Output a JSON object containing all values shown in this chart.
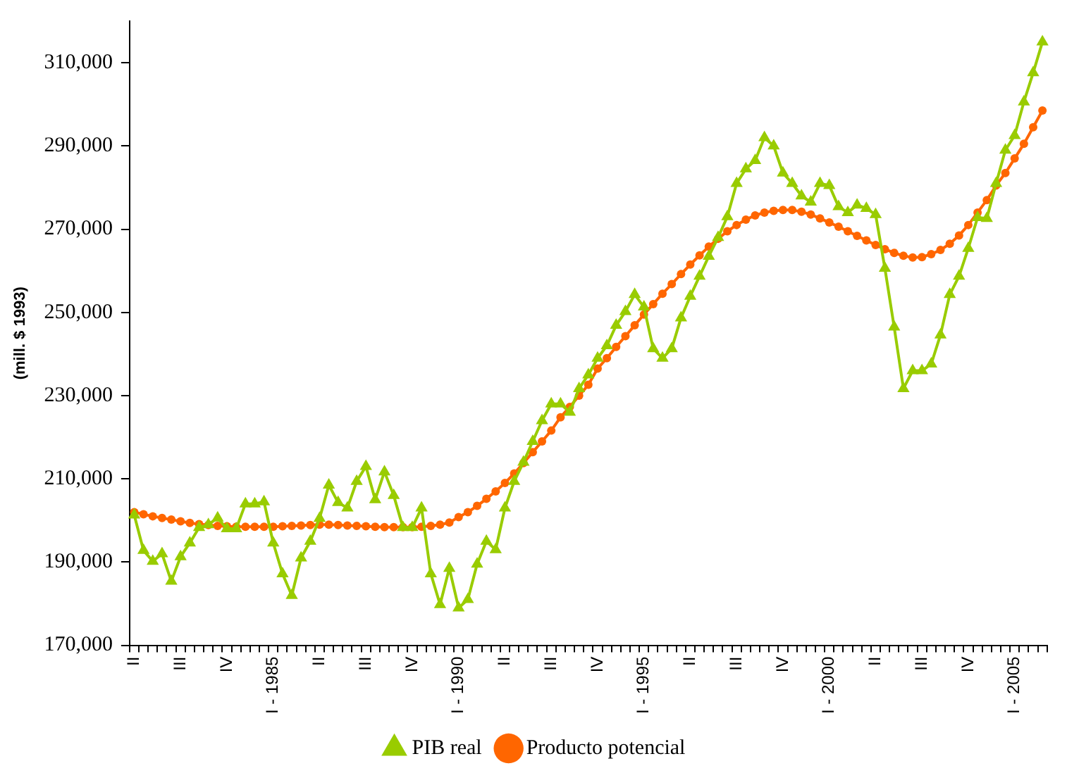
{
  "chart_data": {
    "type": "line",
    "ylabel": "(mill. $ 1993)",
    "legend": "bottom",
    "grid": false,
    "categories": [
      "II",
      null,
      null,
      null,
      null,
      "III",
      null,
      null,
      null,
      null,
      "IV",
      null,
      null,
      null,
      null,
      "I - 1985",
      null,
      null,
      null,
      null,
      "II",
      null,
      null,
      null,
      null,
      "III",
      null,
      null,
      null,
      null,
      "IV",
      null,
      null,
      null,
      null,
      "I - 1990",
      null,
      null,
      null,
      null,
      "II",
      null,
      null,
      null,
      null,
      "III",
      null,
      null,
      null,
      null,
      "IV",
      null,
      null,
      null,
      null,
      "I - 1995",
      null,
      null,
      null,
      null,
      "II",
      null,
      null,
      null,
      null,
      "III",
      null,
      null,
      null,
      null,
      "IV",
      null,
      null,
      null,
      null,
      "I - 2000",
      null,
      null,
      null,
      null,
      "II",
      null,
      null,
      null,
      null,
      "III",
      null,
      null,
      null,
      null,
      "IV",
      null,
      null,
      null,
      null,
      "I - 2005",
      null,
      null,
      null
    ],
    "ylim": [
      170000,
      320000
    ],
    "yticks": [
      {
        "value": 170000,
        "label": "170,000"
      },
      {
        "value": 190000,
        "label": "190,000"
      },
      {
        "value": 210000,
        "label": "210,000"
      },
      {
        "value": 230000,
        "label": "230,000"
      },
      {
        "value": 250000,
        "label": "250,000"
      },
      {
        "value": 270000,
        "label": "270,000"
      },
      {
        "value": 290000,
        "label": "290,000"
      },
      {
        "value": 310000,
        "label": "310,000"
      }
    ],
    "series": [
      {
        "name": "PIB real",
        "color": "#99cc00",
        "marker": "triangle",
        "values": [
          201300,
          192800,
          190200,
          192000,
          185400,
          191300,
          194600,
          198300,
          199000,
          200600,
          198000,
          198000,
          204000,
          204000,
          204500,
          194600,
          187200,
          182000,
          191000,
          195000,
          200500,
          208500,
          204300,
          203000,
          209400,
          213000,
          205000,
          211700,
          206000,
          198300,
          198300,
          203000,
          187200,
          179800,
          188500,
          179000,
          181000,
          189500,
          195000,
          193000,
          203000,
          209400,
          214000,
          219000,
          224000,
          228000,
          228000,
          226000,
          231700,
          235000,
          239000,
          242000,
          246900,
          250200,
          254300,
          251300,
          241300,
          239000,
          241300,
          248700,
          253900,
          258700,
          263500,
          268000,
          273000,
          281000,
          284500,
          286500,
          292000,
          290000,
          283500,
          281000,
          278000,
          276500,
          281000,
          280500,
          275400,
          274000,
          275800,
          275000,
          273500,
          260600,
          246500,
          231700,
          236000,
          236000,
          237600,
          244600,
          254300,
          258700,
          265400,
          272800,
          272600,
          281000,
          289000,
          292500,
          300600,
          307600,
          315000
        ]
      },
      {
        "name": "Producto potencial",
        "color": "#ff6600",
        "marker": "circle",
        "values": [
          202000,
          201500,
          201000,
          200600,
          200200,
          199800,
          199400,
          199100,
          198900,
          198700,
          198600,
          198500,
          198500,
          198500,
          198500,
          198500,
          198600,
          198700,
          198800,
          198900,
          199000,
          199000,
          198900,
          198800,
          198700,
          198600,
          198500,
          198400,
          198400,
          198400,
          198400,
          198500,
          198700,
          199000,
          199500,
          200800,
          202000,
          203500,
          205200,
          207000,
          209000,
          211300,
          213800,
          216400,
          219000,
          221600,
          224800,
          227300,
          230000,
          232600,
          236500,
          239000,
          241700,
          244300,
          246900,
          249500,
          252000,
          254500,
          256800,
          259200,
          261500,
          263700,
          265800,
          267700,
          269500,
          271000,
          272300,
          273300,
          274000,
          274400,
          274600,
          274600,
          274200,
          273500,
          272600,
          271600,
          270600,
          269500,
          268400,
          267300,
          266200,
          265200,
          264300,
          263600,
          263200,
          263300,
          264000,
          265000,
          266500,
          268500,
          271000,
          274000,
          277000,
          280500,
          283500,
          287000,
          290500,
          294500,
          298500
        ]
      }
    ]
  }
}
